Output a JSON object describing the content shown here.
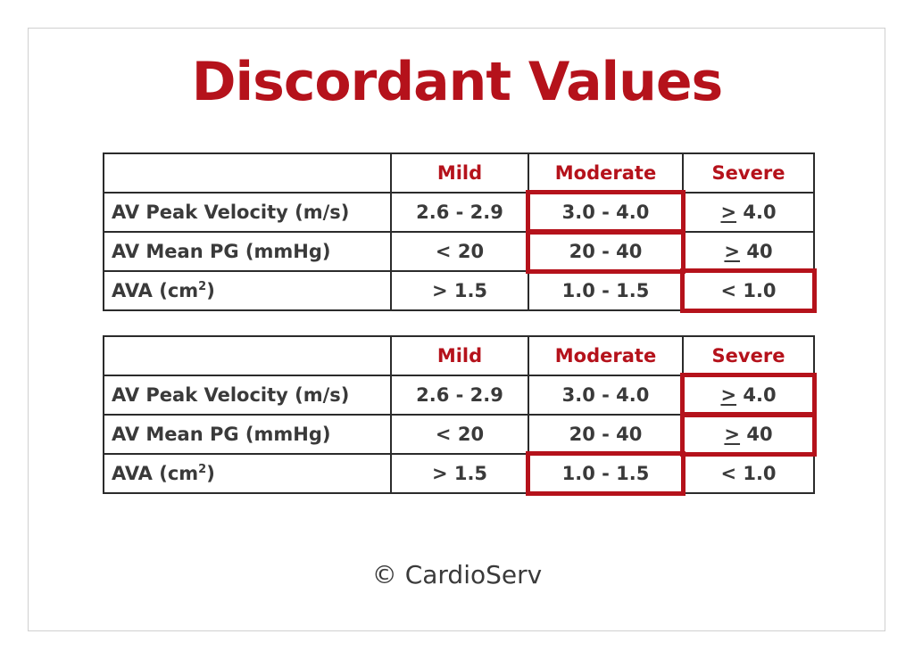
{
  "title": "Discordant Values",
  "tables": [
    {
      "headers": [
        "",
        "Mild",
        "Moderate",
        "Severe"
      ],
      "rows": [
        {
          "label": "AV Peak Velocity (m/s)",
          "mild": "2.6 - 2.9",
          "moderate": "3.0 - 4.0",
          "severe_sym": ">",
          "severe_val": " 4.0"
        },
        {
          "label": "AV Mean PG (mmHg)",
          "mild": "< 20",
          "moderate": "20 - 40",
          "severe_sym": ">",
          "severe_val": " 40"
        },
        {
          "label_main": "AVA (cm",
          "label_sup": "2",
          "label_end": ")",
          "mild": "> 1.5",
          "moderate": "1.0 - 1.5",
          "severe": "< 1.0"
        }
      ],
      "highlighted": [
        "AV Peak Velocity (m/s) / Moderate",
        "AV Mean PG (mmHg) / Moderate",
        "AVA / Severe"
      ]
    },
    {
      "headers": [
        "",
        "Mild",
        "Moderate",
        "Severe"
      ],
      "rows": [
        {
          "label": "AV Peak Velocity (m/s)",
          "mild": "2.6 - 2.9",
          "moderate": "3.0 - 4.0",
          "severe_sym": ">",
          "severe_val": " 4.0"
        },
        {
          "label": "AV Mean PG (mmHg)",
          "mild": "< 20",
          "moderate": "20 - 40",
          "severe_sym": ">",
          "severe_val": " 40"
        },
        {
          "label_main": "AVA (cm",
          "label_sup": "2",
          "label_end": ")",
          "mild": "> 1.5",
          "moderate": "1.0 - 1.5",
          "severe": "< 1.0"
        }
      ],
      "highlighted": [
        "AV Peak Velocity (m/s) / Severe",
        "AV Mean PG (mmHg) / Severe",
        "AVA / Moderate"
      ]
    }
  ],
  "copyright": "© CardioServ",
  "colors": {
    "accent": "#b5121b",
    "text": "#3a3a3a",
    "border": "#2b2b2b"
  }
}
